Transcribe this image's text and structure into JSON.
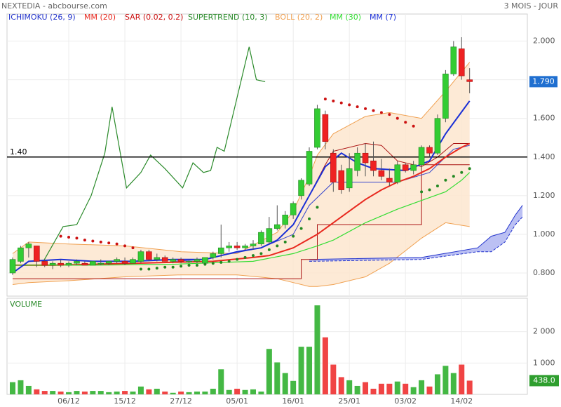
{
  "header": {
    "title": "NEXTEDIA - abcbourse.com",
    "period": "3 MOIS - JOUR"
  },
  "chart_data": [
    {
      "type": "candlestick",
      "x": [
        0,
        1,
        2,
        3,
        4,
        5,
        6,
        7,
        8,
        9,
        10,
        11,
        12,
        13,
        14,
        15,
        16,
        17,
        18,
        19,
        20,
        21,
        22,
        23,
        24,
        25,
        26,
        27,
        28,
        29,
        30,
        31,
        32,
        33,
        34,
        35,
        36,
        37,
        38,
        39,
        40,
        41,
        42,
        43,
        44,
        45,
        46,
        47,
        48,
        49,
        50,
        51,
        52,
        53,
        54,
        55,
        56,
        57
      ],
      "open": [
        0.8,
        0.86,
        0.93,
        0.94,
        0.86,
        0.84,
        0.85,
        0.84,
        0.85,
        0.85,
        0.84,
        0.85,
        0.85,
        0.86,
        0.86,
        0.85,
        0.86,
        0.91,
        0.87,
        0.88,
        0.86,
        0.87,
        0.86,
        0.86,
        0.85,
        0.88,
        0.9,
        0.93,
        0.94,
        0.93,
        0.94,
        0.95,
        0.96,
        1.03,
        1.05,
        1.1,
        1.2,
        1.26,
        1.45,
        1.62,
        1.42,
        1.33,
        1.24,
        1.33,
        1.42,
        1.38,
        1.33,
        1.29,
        1.27,
        1.36,
        1.33,
        1.36,
        1.45,
        1.42,
        1.6,
        1.83,
        1.96,
        1.8
      ],
      "high": [
        0.88,
        0.94,
        0.96,
        0.94,
        0.87,
        0.86,
        0.87,
        0.86,
        0.87,
        0.86,
        0.86,
        0.87,
        0.86,
        0.88,
        0.88,
        0.88,
        0.92,
        0.92,
        0.9,
        0.89,
        0.88,
        0.88,
        0.87,
        0.88,
        0.88,
        0.91,
        1.05,
        0.96,
        0.96,
        0.95,
        0.97,
        1.02,
        1.09,
        1.15,
        1.12,
        1.17,
        1.29,
        1.45,
        1.67,
        1.64,
        1.44,
        1.36,
        1.42,
        1.45,
        1.47,
        1.48,
        1.39,
        1.34,
        1.38,
        1.37,
        1.38,
        1.46,
        1.46,
        1.62,
        1.85,
        2.0,
        2.02,
        1.86
      ],
      "low": [
        0.79,
        0.85,
        0.88,
        0.83,
        0.83,
        0.82,
        0.83,
        0.83,
        0.84,
        0.84,
        0.84,
        0.84,
        0.84,
        0.85,
        0.84,
        0.85,
        0.85,
        0.86,
        0.86,
        0.86,
        0.85,
        0.85,
        0.85,
        0.85,
        0.84,
        0.87,
        0.88,
        0.91,
        0.92,
        0.92,
        0.92,
        0.94,
        0.95,
        1.02,
        1.03,
        1.08,
        1.18,
        1.25,
        1.44,
        1.44,
        1.22,
        1.21,
        1.22,
        1.3,
        1.3,
        1.3,
        1.28,
        1.25,
        1.26,
        1.32,
        1.31,
        1.33,
        1.4,
        1.41,
        1.58,
        1.82,
        1.8,
        1.73
      ],
      "close": [
        0.87,
        0.93,
        0.95,
        0.86,
        0.84,
        0.85,
        0.84,
        0.85,
        0.86,
        0.84,
        0.86,
        0.85,
        0.86,
        0.87,
        0.85,
        0.87,
        0.91,
        0.87,
        0.88,
        0.86,
        0.87,
        0.86,
        0.86,
        0.87,
        0.88,
        0.9,
        0.93,
        0.94,
        0.93,
        0.94,
        0.95,
        1.01,
        1.03,
        1.05,
        1.1,
        1.16,
        1.28,
        1.43,
        1.65,
        1.48,
        1.27,
        1.23,
        1.34,
        1.42,
        1.37,
        1.33,
        1.3,
        1.27,
        1.36,
        1.33,
        1.36,
        1.45,
        1.42,
        1.6,
        1.83,
        1.97,
        1.82,
        1.79
      ],
      "up_color": "#33cc33",
      "down_color": "#ee2222",
      "xlim": [
        -0.7,
        64.2
      ],
      "xticks": [
        {
          "value": 7,
          "label": "06/12"
        },
        {
          "value": 14,
          "label": "15/12"
        },
        {
          "value": 21,
          "label": "27/12"
        },
        {
          "value": 28,
          "label": "05/01"
        },
        {
          "value": 35,
          "label": "16/01"
        },
        {
          "value": 42,
          "label": "25/01"
        },
        {
          "value": 49,
          "label": "03/02"
        },
        {
          "value": 56,
          "label": "14/02"
        }
      ],
      "ylim": [
        0.68,
        2.14
      ],
      "yticks": [
        {
          "value": 0.8,
          "label": "0.800"
        },
        {
          "value": 1.0,
          "label": "1.000"
        },
        {
          "value": 1.2,
          "label": "1.200"
        },
        {
          "value": 1.4,
          "label": "1.400"
        },
        {
          "value": 1.6,
          "label": "1.600"
        },
        {
          "value": 1.8,
          "label": "1.800"
        },
        {
          "value": 2.0,
          "label": "2.000"
        }
      ],
      "grid": true,
      "last_price": {
        "value": 1.79,
        "label": "1.790",
        "color": "#1f6fd0"
      },
      "hline": {
        "value": 1.4,
        "label": "1.40",
        "color": "#000000"
      },
      "bollinger": {
        "name": "BOLL (20, 2)",
        "color": "#f0a050",
        "fill": "#fde6cf",
        "x": [
          0,
          2,
          7,
          14,
          21,
          28,
          33,
          35,
          37,
          38,
          40,
          44,
          47,
          51,
          54,
          57
        ],
        "upper": [
          0.9,
          0.96,
          0.95,
          0.94,
          0.91,
          0.9,
          1.01,
          1.12,
          1.3,
          1.41,
          1.52,
          1.61,
          1.63,
          1.6,
          1.74,
          1.89
        ],
        "lower": [
          0.74,
          0.75,
          0.76,
          0.78,
          0.79,
          0.79,
          0.77,
          0.75,
          0.73,
          0.73,
          0.74,
          0.78,
          0.85,
          0.98,
          1.06,
          1.04
        ]
      },
      "ichimoku": {
        "name": "ICHIMOKU (26, 9)",
        "color": "#2233cc",
        "cloud": {
          "color": "#aab0f0",
          "x": [
            37,
            51,
            58,
            59.7,
            61.4,
            62.7,
            63.6
          ],
          "upper": [
            0.87,
            0.88,
            0.93,
            0.99,
            1.01,
            1.1,
            1.15
          ],
          "lower": [
            0.86,
            0.87,
            0.91,
            0.91,
            0.96,
            1.05,
            1.09
          ]
        },
        "lines": [
          {
            "color": "#aa1111",
            "x": [
              0,
              36,
              36,
              38,
              38,
              51,
              51,
              57
            ],
            "values": [
              0.77,
              0.77,
              0.87,
              0.87,
              1.05,
              1.05,
              1.36,
              1.36
            ]
          },
          {
            "color": "#aa1111",
            "x": [
              37,
              39,
              40,
              44,
              46,
              48,
              51,
              53,
              55,
              57
            ],
            "values": [
              1.2,
              1.36,
              1.43,
              1.47,
              1.46,
              1.38,
              1.35,
              1.4,
              1.47,
              1.47
            ]
          },
          {
            "color": "#3344cc",
            "x": [
              20,
              24,
              26,
              31,
              35,
              37,
              40,
              44,
              48,
              52,
              55,
              57
            ],
            "values": [
              0.86,
              0.87,
              0.89,
              0.93,
              1.0,
              1.15,
              1.27,
              1.27,
              1.27,
              1.32,
              1.44,
              1.46
            ]
          }
        ]
      },
      "moving_averages": [
        {
          "name": "MM (20)",
          "color": "#e8281e",
          "width": 2,
          "x": [
            0,
            5,
            10,
            15,
            20,
            25,
            30,
            32,
            35,
            38,
            40,
            42,
            44,
            46,
            48,
            50,
            52,
            54,
            56,
            57
          ],
          "values": [
            0.84,
            0.84,
            0.845,
            0.85,
            0.855,
            0.86,
            0.88,
            0.89,
            0.93,
            1.0,
            1.06,
            1.12,
            1.18,
            1.23,
            1.27,
            1.3,
            1.34,
            1.4,
            1.45,
            1.47
          ]
        },
        {
          "name": "MM (30)",
          "color": "#33dd33",
          "width": 1.2,
          "x": [
            0,
            10,
            20,
            30,
            35,
            38,
            40,
            44,
            48,
            52,
            54,
            56,
            57
          ],
          "values": [
            0.84,
            0.84,
            0.845,
            0.86,
            0.9,
            0.94,
            0.97,
            1.06,
            1.13,
            1.19,
            1.22,
            1.28,
            1.32
          ]
        },
        {
          "name": "MM (7)",
          "color": "#1a2fd6",
          "width": 2,
          "x": [
            0,
            2,
            6,
            10,
            15,
            20,
            24,
            28,
            31,
            33,
            35,
            37,
            39,
            41,
            43,
            45,
            49,
            52,
            54,
            57
          ],
          "values": [
            0.8,
            0.86,
            0.87,
            0.86,
            0.86,
            0.87,
            0.87,
            0.91,
            0.93,
            0.97,
            1.05,
            1.2,
            1.35,
            1.42,
            1.37,
            1.34,
            1.33,
            1.38,
            1.52,
            1.69
          ]
        }
      ],
      "sar": {
        "name": "SAR (0.02, 0.2)",
        "color": "#cc1111",
        "below_color": "#228822",
        "values": [
          null,
          null,
          null,
          null,
          null,
          null,
          0.99,
          0.985,
          0.98,
          0.97,
          0.965,
          0.96,
          0.955,
          0.95,
          0.94,
          0.93,
          0.82,
          0.82,
          0.825,
          0.83,
          0.83,
          0.835,
          0.84,
          0.84,
          0.845,
          0.85,
          0.855,
          0.86,
          0.87,
          0.88,
          0.89,
          0.9,
          0.92,
          0.94,
          0.96,
          0.99,
          1.03,
          1.08,
          1.14,
          1.7,
          1.69,
          1.68,
          1.67,
          1.66,
          1.65,
          1.64,
          1.63,
          1.62,
          1.6,
          1.58,
          1.56,
          1.22,
          1.23,
          1.25,
          1.28,
          1.3,
          1.32,
          1.34
        ]
      },
      "supertrend": {
        "name": "SUPERTREND (10, 3)",
        "color": "#2a8a2a",
        "x": [
          3.7,
          6.3,
          8,
          9.8,
          11.5,
          12.4,
          14.2,
          16,
          17.2,
          19,
          21.2,
          22.5,
          23.8,
          24.7,
          25.5,
          26.4,
          29.5,
          30.4,
          31.5
        ],
        "values": [
          0.85,
          1.04,
          1.05,
          1.2,
          1.42,
          1.66,
          1.24,
          1.32,
          1.41,
          1.34,
          1.24,
          1.37,
          1.32,
          1.33,
          1.45,
          1.43,
          1.97,
          1.8,
          1.79
        ]
      }
    },
    {
      "type": "bar",
      "title": "VOLUME",
      "values": [
        390,
        450,
        270,
        160,
        110,
        110,
        90,
        70,
        110,
        90,
        110,
        110,
        70,
        90,
        110,
        90,
        250,
        160,
        180,
        90,
        50,
        90,
        70,
        90,
        90,
        180,
        800,
        140,
        180,
        140,
        160,
        90,
        1450,
        1020,
        680,
        430,
        1520,
        1520,
        2840,
        1820,
        950,
        550,
        450,
        270,
        390,
        180,
        340,
        340,
        410,
        340,
        230,
        450,
        250,
        640,
        910,
        680,
        950,
        438
      ],
      "up_color": "#44b844",
      "down_color": "#f04444",
      "ylim": [
        0,
        3000
      ],
      "yticks": [
        {
          "value": 1000,
          "label": "1 000"
        },
        {
          "value": 2000,
          "label": "2 000"
        }
      ],
      "last_value": {
        "value": 438,
        "label": "438.0",
        "color": "#2e9e2e"
      }
    }
  ]
}
